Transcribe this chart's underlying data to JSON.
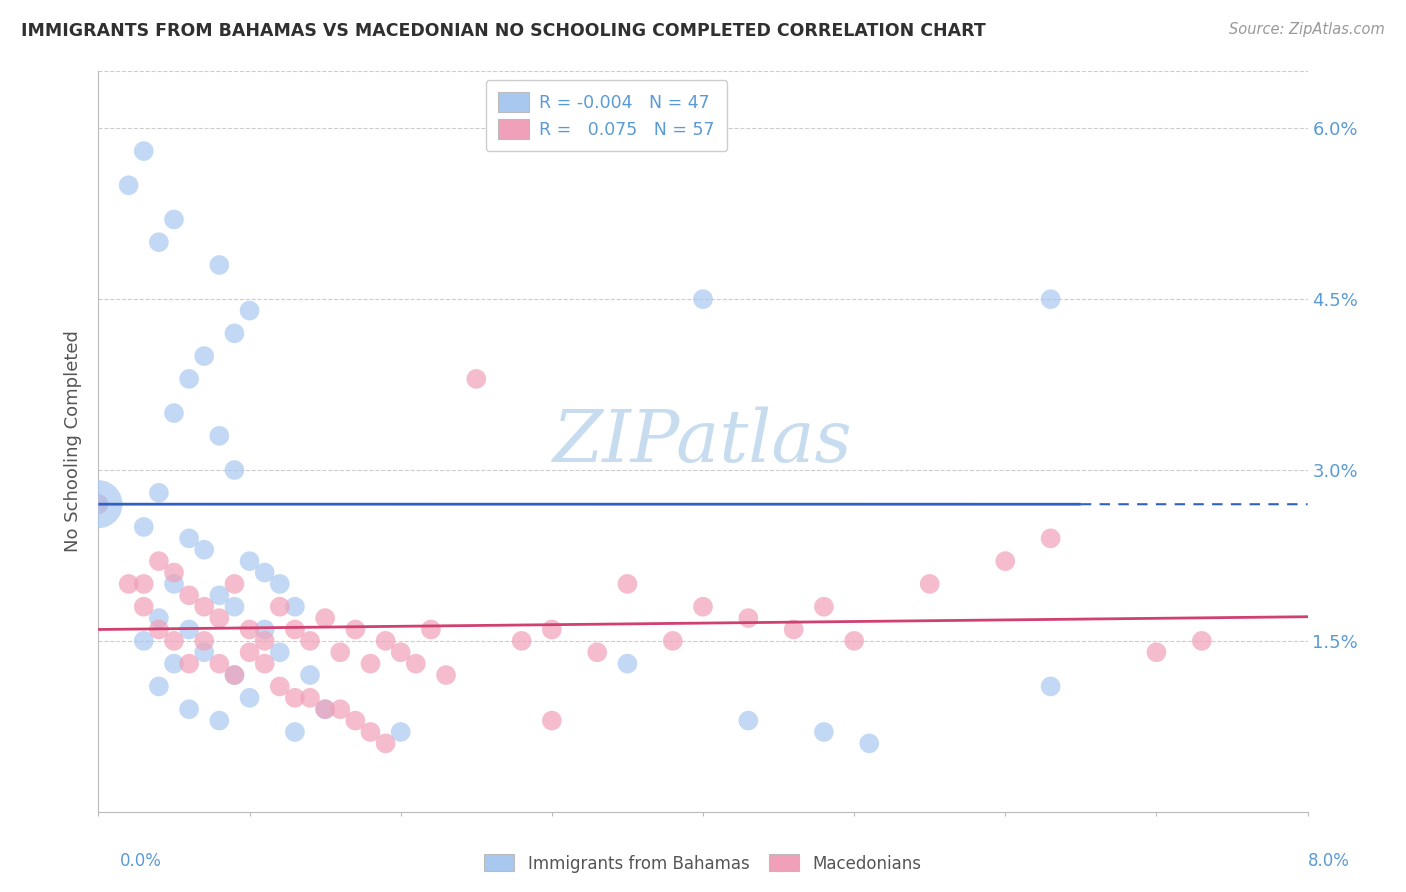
{
  "title": "IMMIGRANTS FROM BAHAMAS VS MACEDONIAN NO SCHOOLING COMPLETED CORRELATION CHART",
  "source": "Source: ZipAtlas.com",
  "ylabel": "No Schooling Completed",
  "ytick_vals": [
    0.015,
    0.03,
    0.045,
    0.06
  ],
  "xlim": [
    0.0,
    0.08
  ],
  "ylim": [
    0.0,
    0.065
  ],
  "blue_color": "#A8C8F0",
  "pink_color": "#F0A0B8",
  "blue_line_color": "#3060C0",
  "pink_line_color": "#D04070",
  "background_color": "#FFFFFF",
  "title_color": "#303030",
  "axis_tick_color": "#5B9BD5",
  "watermark_color": "#C8DCF0",
  "blue_line_y0": 0.027,
  "blue_line_slope": -5e-05,
  "pink_line_y0": 0.016,
  "pink_line_slope": 0.014,
  "blue_points": [
    [
      0.002,
      0.055
    ],
    [
      0.003,
      0.058
    ],
    [
      0.004,
      0.05
    ],
    [
      0.005,
      0.052
    ],
    [
      0.008,
      0.048
    ],
    [
      0.009,
      0.042
    ],
    [
      0.01,
      0.044
    ],
    [
      0.006,
      0.038
    ],
    [
      0.007,
      0.04
    ],
    [
      0.005,
      0.035
    ],
    [
      0.008,
      0.033
    ],
    [
      0.004,
      0.028
    ],
    [
      0.009,
      0.03
    ],
    [
      0.0,
      0.027
    ],
    [
      0.003,
      0.025
    ],
    [
      0.006,
      0.024
    ],
    [
      0.007,
      0.023
    ],
    [
      0.01,
      0.022
    ],
    [
      0.011,
      0.021
    ],
    [
      0.005,
      0.02
    ],
    [
      0.008,
      0.019
    ],
    [
      0.012,
      0.02
    ],
    [
      0.009,
      0.018
    ],
    [
      0.013,
      0.018
    ],
    [
      0.004,
      0.017
    ],
    [
      0.011,
      0.016
    ],
    [
      0.006,
      0.016
    ],
    [
      0.003,
      0.015
    ],
    [
      0.007,
      0.014
    ],
    [
      0.012,
      0.014
    ],
    [
      0.005,
      0.013
    ],
    [
      0.009,
      0.012
    ],
    [
      0.014,
      0.012
    ],
    [
      0.004,
      0.011
    ],
    [
      0.01,
      0.01
    ],
    [
      0.006,
      0.009
    ],
    [
      0.015,
      0.009
    ],
    [
      0.008,
      0.008
    ],
    [
      0.013,
      0.007
    ],
    [
      0.02,
      0.007
    ],
    [
      0.04,
      0.045
    ],
    [
      0.035,
      0.013
    ],
    [
      0.043,
      0.008
    ],
    [
      0.048,
      0.007
    ],
    [
      0.051,
      0.006
    ],
    [
      0.063,
      0.045
    ],
    [
      0.063,
      0.011
    ]
  ],
  "pink_points": [
    [
      0.0,
      0.027
    ],
    [
      0.002,
      0.02
    ],
    [
      0.003,
      0.02
    ],
    [
      0.004,
      0.022
    ],
    [
      0.003,
      0.018
    ],
    [
      0.005,
      0.021
    ],
    [
      0.004,
      0.016
    ],
    [
      0.006,
      0.019
    ],
    [
      0.005,
      0.015
    ],
    [
      0.007,
      0.018
    ],
    [
      0.006,
      0.013
    ],
    [
      0.008,
      0.017
    ],
    [
      0.007,
      0.015
    ],
    [
      0.009,
      0.02
    ],
    [
      0.008,
      0.013
    ],
    [
      0.01,
      0.016
    ],
    [
      0.009,
      0.012
    ],
    [
      0.011,
      0.015
    ],
    [
      0.01,
      0.014
    ],
    [
      0.012,
      0.018
    ],
    [
      0.011,
      0.013
    ],
    [
      0.013,
      0.016
    ],
    [
      0.012,
      0.011
    ],
    [
      0.014,
      0.015
    ],
    [
      0.013,
      0.01
    ],
    [
      0.015,
      0.017
    ],
    [
      0.014,
      0.01
    ],
    [
      0.016,
      0.014
    ],
    [
      0.015,
      0.009
    ],
    [
      0.017,
      0.016
    ],
    [
      0.016,
      0.009
    ],
    [
      0.018,
      0.013
    ],
    [
      0.017,
      0.008
    ],
    [
      0.019,
      0.015
    ],
    [
      0.018,
      0.007
    ],
    [
      0.02,
      0.014
    ],
    [
      0.019,
      0.006
    ],
    [
      0.021,
      0.013
    ],
    [
      0.022,
      0.016
    ],
    [
      0.023,
      0.012
    ],
    [
      0.025,
      0.038
    ],
    [
      0.028,
      0.015
    ],
    [
      0.03,
      0.016
    ],
    [
      0.03,
      0.008
    ],
    [
      0.033,
      0.014
    ],
    [
      0.035,
      0.02
    ],
    [
      0.038,
      0.015
    ],
    [
      0.04,
      0.018
    ],
    [
      0.043,
      0.017
    ],
    [
      0.046,
      0.016
    ],
    [
      0.048,
      0.018
    ],
    [
      0.05,
      0.015
    ],
    [
      0.055,
      0.02
    ],
    [
      0.06,
      0.022
    ],
    [
      0.063,
      0.024
    ],
    [
      0.07,
      0.014
    ],
    [
      0.073,
      0.015
    ]
  ]
}
